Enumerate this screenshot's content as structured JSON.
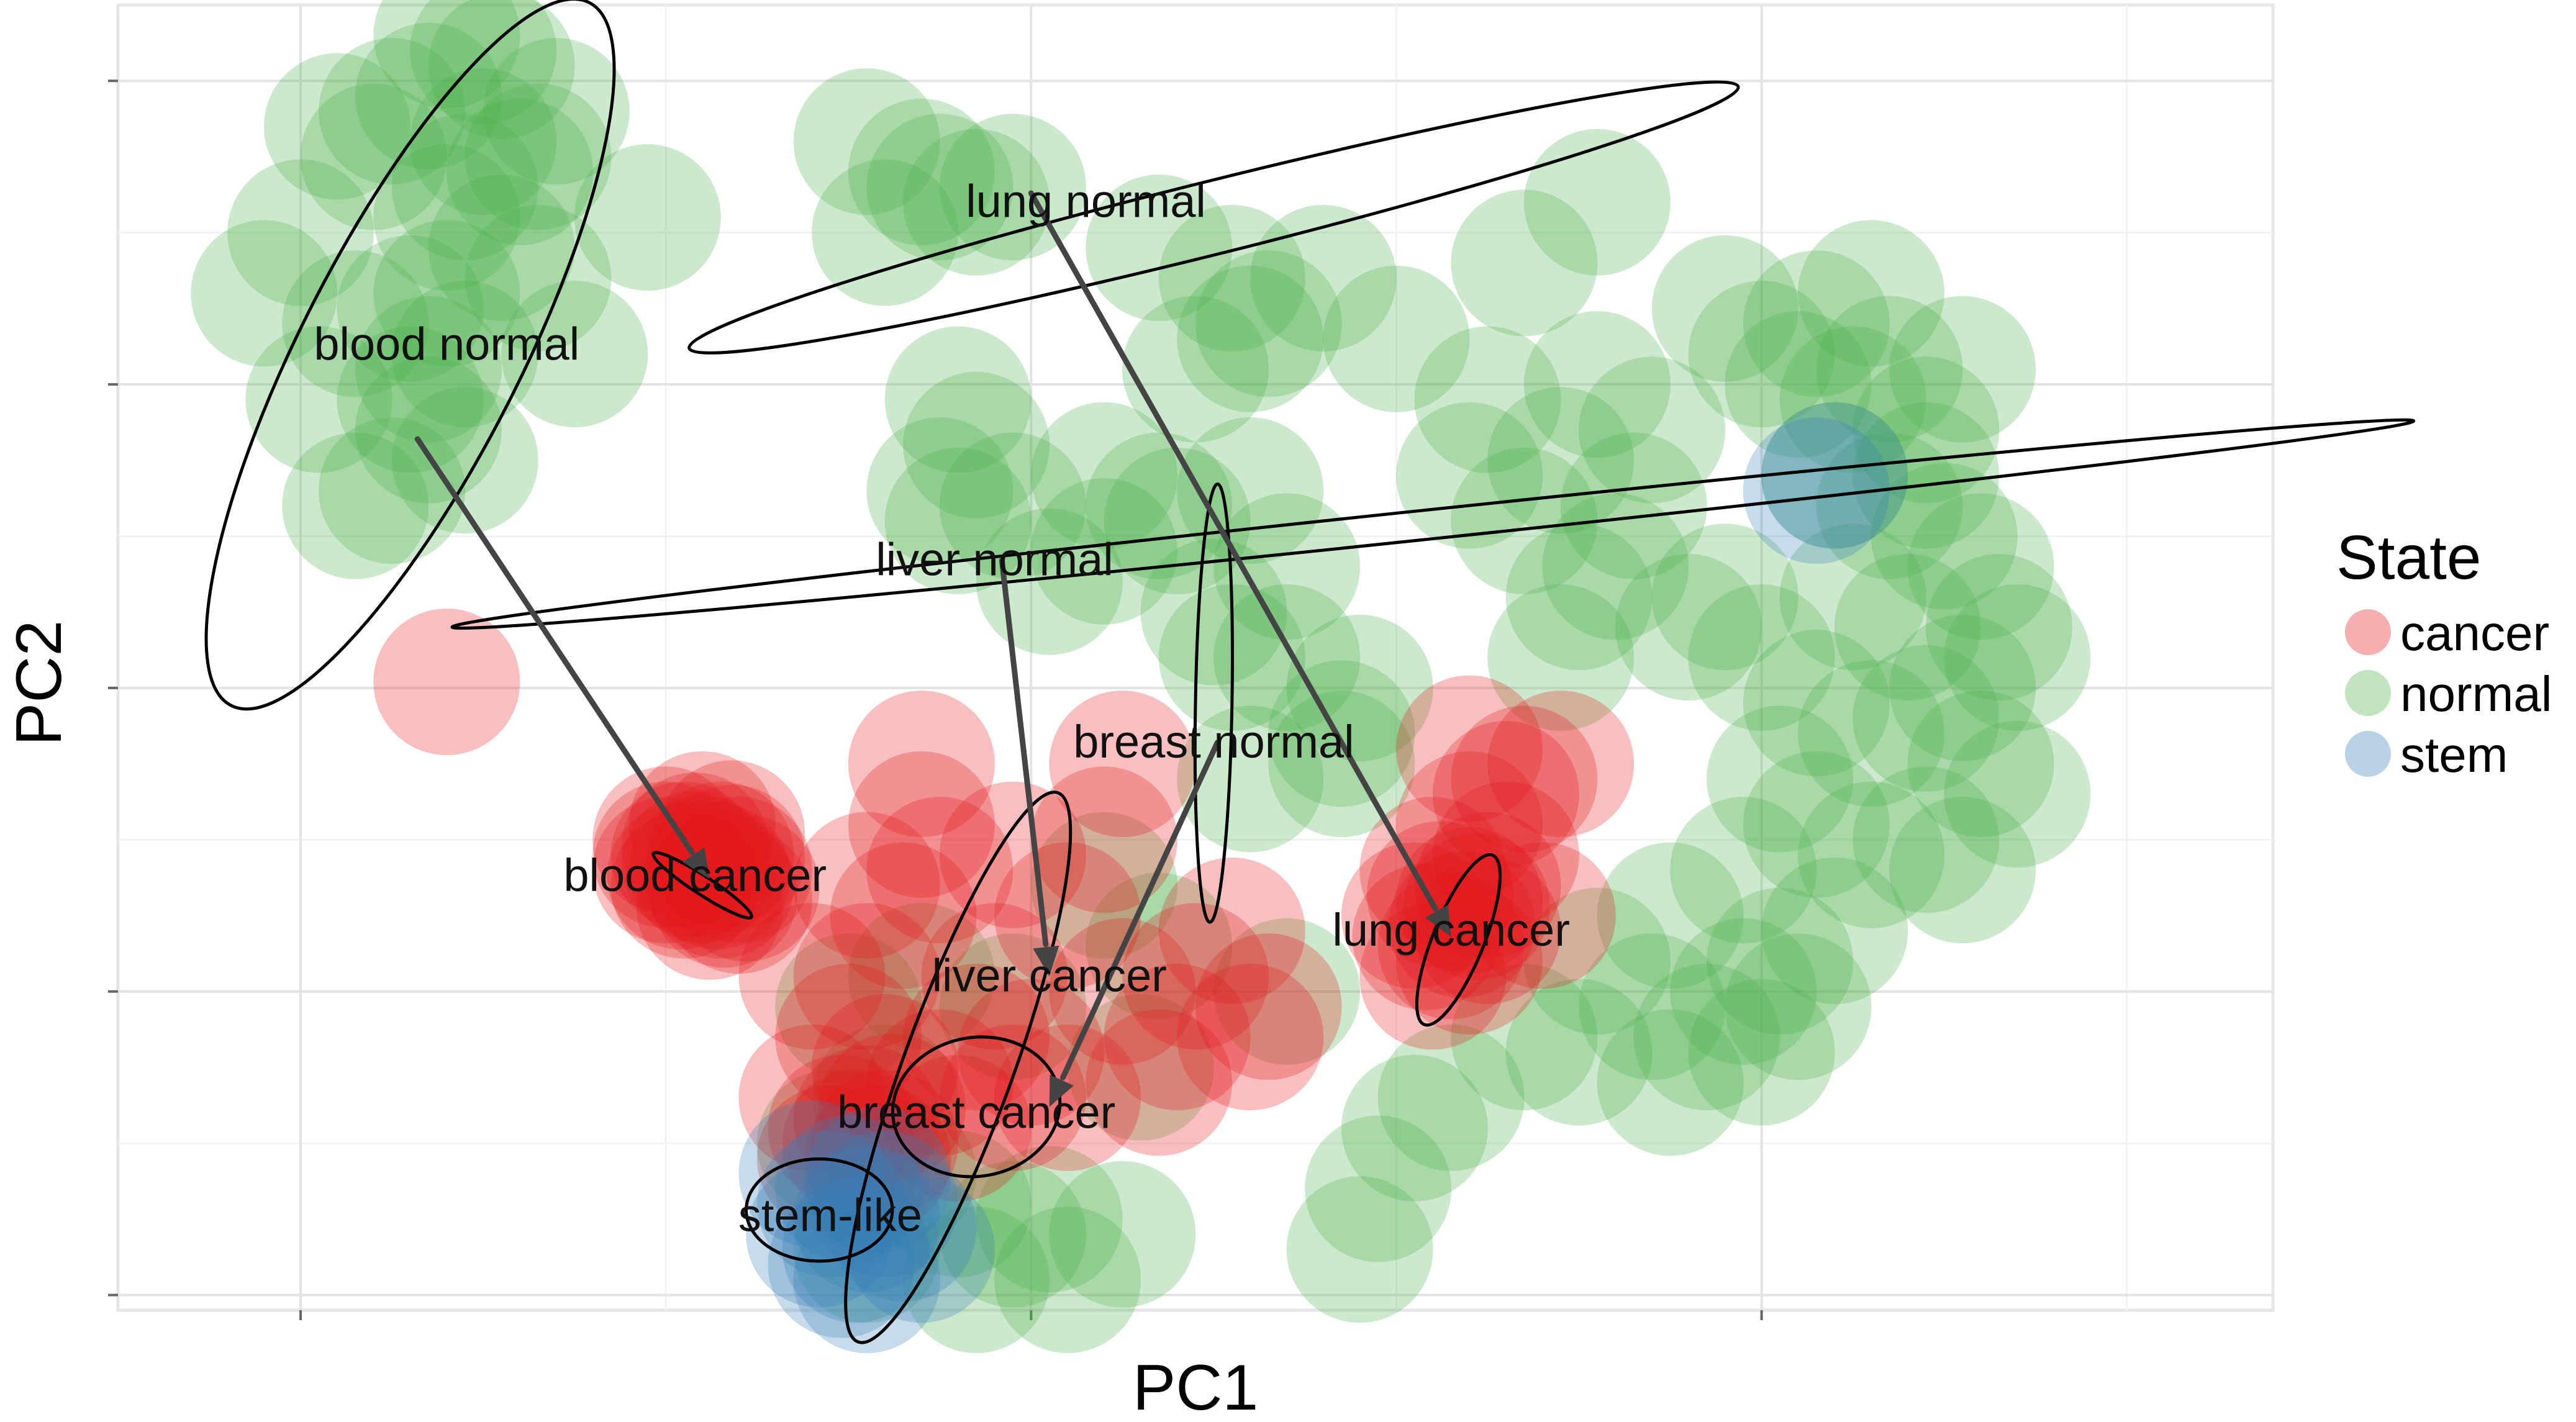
{
  "chart_data": {
    "type": "scatter",
    "xlabel": "PC1",
    "ylabel": "PC2",
    "xlim": [
      -1.5,
      4.4
    ],
    "ylim": [
      -2.05,
      2.25
    ],
    "x_major_ticks": [
      -1,
      1,
      3
    ],
    "y_major_ticks": [
      -2,
      -1,
      0,
      1,
      2
    ],
    "grid": true,
    "legend": {
      "title": "State",
      "position": "right",
      "entries": [
        {
          "label": "cancer",
          "color": "#e41a1c"
        },
        {
          "label": "normal",
          "color": "#4daf4a"
        },
        {
          "label": "stem",
          "color": "#377eb8"
        }
      ]
    },
    "series": [
      {
        "name": "normal",
        "color": "#4daf4a",
        "points": [
          [
            -0.45,
            2.05
          ],
          [
            -0.5,
            1.8
          ],
          [
            -0.55,
            1.65
          ],
          [
            -0.35,
            1.75
          ],
          [
            -0.6,
            1.55
          ],
          [
            -0.6,
            1.3
          ],
          [
            -0.7,
            1.25
          ],
          [
            -0.7,
            0.95
          ],
          [
            -0.65,
            0.85
          ],
          [
            -0.55,
            1.1
          ],
          [
            -0.35,
            1.35
          ],
          [
            -0.75,
            1.9
          ],
          [
            -0.8,
            1.75
          ],
          [
            -1.1,
            1.3
          ],
          [
            -1.0,
            1.5
          ],
          [
            -0.5,
            2.1
          ],
          [
            -0.45,
            1.45
          ],
          [
            -0.25,
            1.1
          ],
          [
            -0.65,
            1.05
          ],
          [
            -0.85,
            1.2
          ],
          [
            -0.95,
            0.95
          ],
          [
            -0.85,
            0.6
          ],
          [
            -0.75,
            0.65
          ],
          [
            -0.4,
            1.7
          ],
          [
            -0.05,
            1.55
          ],
          [
            -0.65,
            1.95
          ],
          [
            -0.6,
            2.15
          ],
          [
            -0.9,
            1.85
          ],
          [
            -0.55,
            0.75
          ],
          [
            -0.3,
            1.9
          ],
          [
            0.55,
            1.8
          ],
          [
            0.7,
            1.7
          ],
          [
            0.75,
            1.65
          ],
          [
            0.85,
            1.6
          ],
          [
            0.6,
            1.5
          ],
          [
            0.95,
            1.65
          ],
          [
            1.35,
            1.45
          ],
          [
            1.55,
            1.35
          ],
          [
            1.65,
            1.2
          ],
          [
            1.8,
            1.35
          ],
          [
            1.6,
            1.15
          ],
          [
            1.45,
            1.05
          ],
          [
            2.0,
            1.15
          ],
          [
            2.55,
            1.6
          ],
          [
            2.35,
            1.4
          ],
          [
            0.8,
            0.95
          ],
          [
            0.85,
            0.8
          ],
          [
            0.75,
            0.65
          ],
          [
            0.95,
            0.6
          ],
          [
            0.8,
            0.55
          ],
          [
            1.2,
            0.7
          ],
          [
            1.35,
            0.6
          ],
          [
            1.2,
            0.45
          ],
          [
            1.05,
            0.35
          ],
          [
            1.4,
            0.55
          ],
          [
            1.6,
            0.65
          ],
          [
            1.7,
            0.4
          ],
          [
            1.5,
            0.25
          ],
          [
            1.55,
            0.1
          ],
          [
            1.7,
            0.1
          ],
          [
            1.9,
            0.0
          ],
          [
            1.85,
            -0.15
          ],
          [
            1.85,
            -0.25
          ],
          [
            1.6,
            -0.3
          ],
          [
            2.25,
            0.95
          ],
          [
            2.2,
            0.7
          ],
          [
            2.45,
            0.75
          ],
          [
            2.35,
            0.55
          ],
          [
            2.55,
            1.0
          ],
          [
            2.5,
            0.3
          ],
          [
            2.45,
            0.1
          ],
          [
            2.6,
            0.4
          ],
          [
            2.7,
            0.85
          ],
          [
            2.65,
            0.6
          ],
          [
            2.9,
            1.25
          ],
          [
            3.0,
            1.1
          ],
          [
            3.1,
            1.0
          ],
          [
            3.15,
            1.2
          ],
          [
            3.25,
            0.95
          ],
          [
            3.35,
            1.05
          ],
          [
            3.45,
            0.85
          ],
          [
            3.55,
            1.05
          ],
          [
            3.2,
            0.7
          ],
          [
            3.35,
            0.6
          ],
          [
            3.5,
            0.5
          ],
          [
            3.6,
            0.4
          ],
          [
            3.65,
            0.2
          ],
          [
            3.7,
            0.1
          ],
          [
            3.55,
            0.0
          ],
          [
            3.45,
            -0.1
          ],
          [
            3.3,
            -0.15
          ],
          [
            3.15,
            -0.05
          ],
          [
            3.0,
            0.1
          ],
          [
            2.9,
            0.3
          ],
          [
            2.8,
            0.2
          ],
          [
            3.05,
            -0.3
          ],
          [
            3.15,
            -0.45
          ],
          [
            3.3,
            -0.55
          ],
          [
            3.45,
            -0.5
          ],
          [
            3.55,
            -0.6
          ],
          [
            3.2,
            -0.8
          ],
          [
            3.05,
            -0.9
          ],
          [
            2.95,
            -1.0
          ],
          [
            2.85,
            -1.15
          ],
          [
            3.0,
            -1.2
          ],
          [
            2.7,
            -1.05
          ],
          [
            2.55,
            -0.9
          ],
          [
            2.5,
            -1.2
          ],
          [
            2.35,
            -1.15
          ],
          [
            2.15,
            -1.35
          ],
          [
            2.05,
            -1.45
          ],
          [
            1.95,
            -1.65
          ],
          [
            1.9,
            -1.85
          ],
          [
            2.75,
            -1.3
          ],
          [
            3.1,
            -1.05
          ],
          [
            3.6,
            -0.25
          ],
          [
            3.7,
            -0.35
          ],
          [
            3.25,
            0.3
          ],
          [
            3.4,
            0.2
          ],
          [
            3.3,
            1.3
          ],
          [
            3.45,
            0.7
          ],
          [
            2.95,
            -0.6
          ],
          [
            2.75,
            -0.75
          ],
          [
            0.65,
            -1.6
          ],
          [
            0.55,
            -1.85
          ],
          [
            0.8,
            -1.7
          ],
          [
            0.95,
            -1.8
          ],
          [
            1.05,
            -1.75
          ],
          [
            1.25,
            -1.8
          ],
          [
            1.1,
            -1.95
          ],
          [
            0.85,
            -1.95
          ],
          [
            0.45,
            -1.5
          ],
          [
            0.6,
            -1.35
          ],
          [
            0.5,
            -1.05
          ],
          [
            0.7,
            -0.95
          ],
          [
            0.95,
            -1.05
          ],
          [
            1.2,
            -0.65
          ],
          [
            1.35,
            -0.85
          ],
          [
            1.3,
            -1.25
          ],
          [
            1.7,
            -1.0
          ]
        ]
      },
      {
        "name": "cancer",
        "color": "#e41a1c",
        "points": [
          [
            -0.6,
            0.02
          ],
          [
            0.0,
            -0.5
          ],
          [
            0.05,
            -0.55
          ],
          [
            0.1,
            -0.6
          ],
          [
            0.15,
            -0.65
          ],
          [
            0.2,
            -0.7
          ],
          [
            0.05,
            -0.65
          ],
          [
            0.1,
            -0.45
          ],
          [
            0.15,
            -0.55
          ],
          [
            0.2,
            -0.6
          ],
          [
            0.0,
            -0.6
          ],
          [
            0.12,
            -0.72
          ],
          [
            0.08,
            -0.52
          ],
          [
            0.18,
            -0.48
          ],
          [
            0.22,
            -0.66
          ],
          [
            0.7,
            -0.45
          ],
          [
            0.75,
            -0.6
          ],
          [
            0.65,
            -0.75
          ],
          [
            0.55,
            -0.95
          ],
          [
            0.5,
            -1.15
          ],
          [
            0.6,
            -1.25
          ],
          [
            0.75,
            -1.3
          ],
          [
            0.85,
            -1.15
          ],
          [
            0.95,
            -1.35
          ],
          [
            1.0,
            -1.2
          ],
          [
            0.4,
            -1.35
          ],
          [
            0.45,
            -1.55
          ],
          [
            0.6,
            -1.5
          ],
          [
            0.8,
            -1.45
          ],
          [
            0.9,
            -0.95
          ],
          [
            1.45,
            -0.95
          ],
          [
            1.6,
            -1.15
          ],
          [
            1.65,
            -1.05
          ],
          [
            1.25,
            -1.0
          ],
          [
            1.35,
            -1.3
          ],
          [
            1.1,
            -1.35
          ],
          [
            0.95,
            -0.55
          ],
          [
            1.1,
            -0.75
          ],
          [
            1.2,
            -0.5
          ],
          [
            1.25,
            -0.25
          ],
          [
            0.4,
            -0.95
          ],
          [
            0.55,
            -0.65
          ],
          [
            0.7,
            -0.25
          ],
          [
            1.55,
            -0.8
          ],
          [
            1.4,
            -1.15
          ],
          [
            2.1,
            -0.6
          ],
          [
            2.2,
            -0.7
          ],
          [
            2.25,
            -0.8
          ],
          [
            2.05,
            -0.75
          ],
          [
            2.15,
            -0.85
          ],
          [
            2.3,
            -0.55
          ],
          [
            2.35,
            -0.3
          ],
          [
            2.2,
            -0.9
          ],
          [
            2.1,
            -0.95
          ],
          [
            2.25,
            -0.65
          ],
          [
            2.4,
            -0.75
          ],
          [
            2.2,
            -0.45
          ],
          [
            2.2,
            -0.2
          ],
          [
            2.45,
            -0.25
          ],
          [
            2.3,
            -0.35
          ],
          [
            0.0,
            -0.55
          ],
          [
            0.08,
            -0.58
          ],
          [
            0.14,
            -0.62
          ],
          [
            0.18,
            -0.56
          ],
          [
            0.04,
            -0.62
          ],
          [
            0.16,
            -0.68
          ],
          [
            2.12,
            -0.68
          ],
          [
            2.18,
            -0.78
          ],
          [
            2.22,
            -0.72
          ],
          [
            2.08,
            -0.82
          ],
          [
            0.52,
            -1.5
          ],
          [
            0.55,
            -1.42
          ],
          [
            0.62,
            -1.38
          ],
          [
            0.48,
            -1.45
          ],
          [
            0.58,
            -1.55
          ]
        ]
      },
      {
        "name": "stem",
        "color": "#377eb8",
        "points": [
          [
            0.4,
            -1.6
          ],
          [
            0.45,
            -1.7
          ],
          [
            0.5,
            -1.65
          ],
          [
            0.55,
            -1.75
          ],
          [
            0.6,
            -1.7
          ],
          [
            0.42,
            -1.8
          ],
          [
            0.52,
            -1.85
          ],
          [
            0.58,
            -1.62
          ],
          [
            0.65,
            -1.78
          ],
          [
            0.48,
            -1.9
          ],
          [
            0.7,
            -1.85
          ],
          [
            0.55,
            -1.95
          ],
          [
            3.15,
            0.65
          ],
          [
            3.2,
            0.7
          ]
        ]
      }
    ],
    "groups": [
      {
        "label": "blood normal",
        "centroid": [
          -0.6,
          1.13
        ],
        "ellipse": {
          "cx": -0.7,
          "cy": 1.1,
          "rx": 1.08,
          "ry": 0.3,
          "angle": -63
        }
      },
      {
        "label": "blood cancer",
        "centroid": [
          0.08,
          -0.62
        ],
        "ellipse": {
          "cx": 0.1,
          "cy": -0.65,
          "rx": 0.16,
          "ry": 0.025,
          "angle": 33
        }
      },
      {
        "label": "lung normal",
        "centroid": [
          1.15,
          1.6
        ],
        "ellipse": {
          "cx": 1.5,
          "cy": 1.55,
          "rx": 1.48,
          "ry": 0.1,
          "angle": -14
        }
      },
      {
        "label": "lung cancer",
        "centroid": [
          2.15,
          -0.8
        ],
        "ellipse": {
          "cx": 2.17,
          "cy": -0.83,
          "rx": 0.25,
          "ry": 0.07,
          "angle": -68
        }
      },
      {
        "label": "liver normal",
        "centroid": [
          0.9,
          0.42
        ],
        "ellipse": {
          "cx": 2.1,
          "cy": 0.54,
          "rx": 2.7,
          "ry": 0.04,
          "angle": -6
        }
      },
      {
        "label": "liver cancer",
        "centroid": [
          1.05,
          -0.95
        ],
        "ellipse": {
          "cx": 1.5,
          "cy": -0.05,
          "rx": 0.6,
          "ry": 0.05,
          "angle": -89
        }
      },
      {
        "label": "breast normal",
        "centroid": [
          1.5,
          -0.18
        ],
        "ellipse": {
          "cx": 0.8,
          "cy": -1.25,
          "rx": 0.8,
          "ry": 0.15,
          "angle": -70
        }
      },
      {
        "label": "breast cancer",
        "centroid": [
          0.85,
          -1.4
        ],
        "ellipse": {
          "cx": 0.85,
          "cy": -1.38,
          "rx": 0.23,
          "ry": 0.19,
          "angle": -10
        }
      },
      {
        "label": "stem-like",
        "centroid": [
          0.45,
          -1.74
        ],
        "ellipse": {
          "cx": 0.42,
          "cy": -1.72,
          "rx": 0.2,
          "ry": 0.14,
          "angle": 0
        }
      }
    ],
    "arrows": [
      {
        "from": "blood normal",
        "to": "blood cancer",
        "start": [
          -0.68,
          0.82
        ],
        "end": [
          0.12,
          -0.63
        ]
      },
      {
        "from": "lung normal",
        "to": "lung cancer",
        "start": [
          1.0,
          1.63
        ],
        "end": [
          2.15,
          -0.82
        ]
      },
      {
        "from": "liver normal",
        "to": "liver cancer",
        "start": [
          0.92,
          0.42
        ],
        "end": [
          1.05,
          -0.95
        ]
      },
      {
        "from": "breast normal",
        "to": "breast cancer",
        "start": [
          1.51,
          -0.18
        ],
        "end": [
          1.05,
          -1.38
        ]
      }
    ]
  }
}
